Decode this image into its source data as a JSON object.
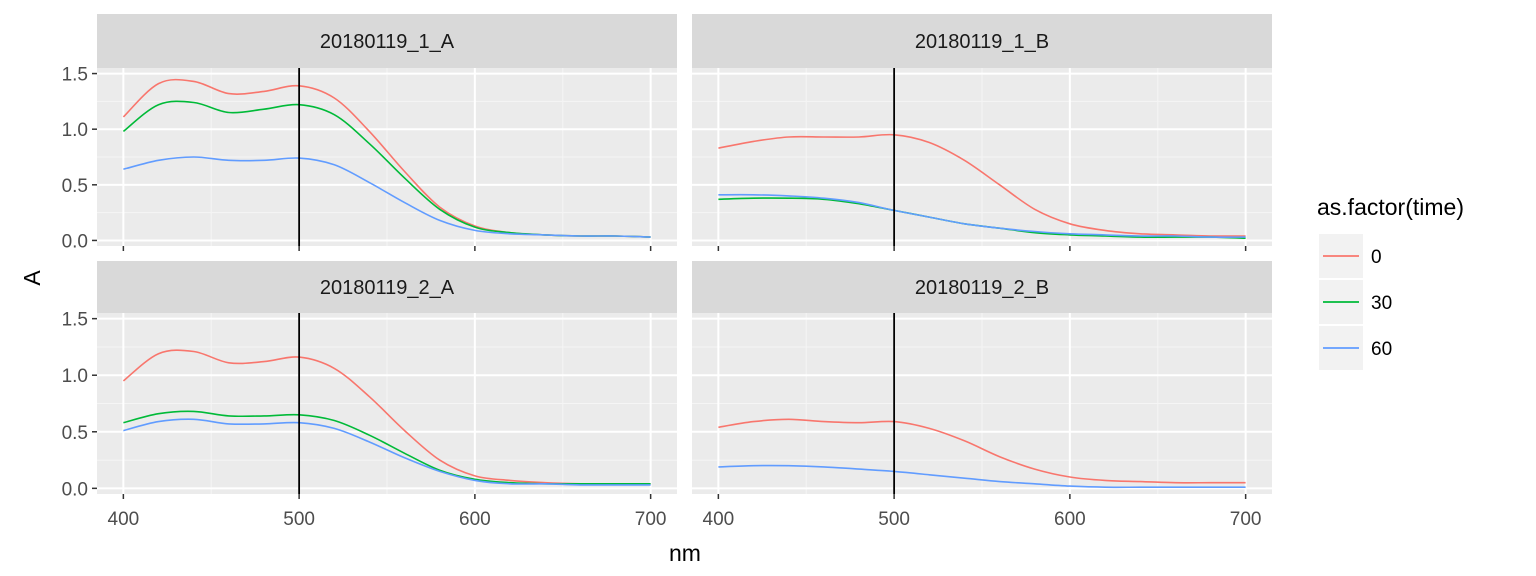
{
  "chart_data": {
    "type": "line",
    "xlabel": "nm",
    "ylabel": "A",
    "xlim": [
      385,
      715
    ],
    "ylim": [
      -0.05,
      1.55
    ],
    "x_ticks": [
      "400",
      "500",
      "600",
      "700"
    ],
    "y_ticks": [
      "0.0",
      "0.5",
      "1.0",
      "1.5"
    ],
    "reference_line_x": 500,
    "grid": true,
    "legend": {
      "title": "as.factor(time)",
      "position": "right",
      "entries": [
        {
          "label": "0",
          "color": "#F8766D"
        },
        {
          "label": "30",
          "color": "#00BA38"
        },
        {
          "label": "60",
          "color": "#619CFF"
        }
      ]
    },
    "x": [
      400,
      420,
      440,
      460,
      480,
      500,
      520,
      540,
      560,
      580,
      600,
      620,
      640,
      660,
      680,
      700
    ],
    "panels": [
      {
        "strip": "20180119_1_A",
        "series": [
          {
            "name": "0",
            "values": [
              1.11,
              1.41,
              1.43,
              1.32,
              1.34,
              1.39,
              1.28,
              0.98,
              0.62,
              0.3,
              0.13,
              0.07,
              0.05,
              0.04,
              0.04,
              0.03
            ]
          },
          {
            "name": "30",
            "values": [
              0.98,
              1.22,
              1.24,
              1.15,
              1.18,
              1.22,
              1.13,
              0.87,
              0.56,
              0.28,
              0.12,
              0.07,
              0.05,
              0.04,
              0.04,
              0.03
            ]
          },
          {
            "name": "60",
            "values": [
              0.64,
              0.72,
              0.75,
              0.72,
              0.72,
              0.74,
              0.68,
              0.52,
              0.34,
              0.18,
              0.09,
              0.06,
              0.05,
              0.04,
              0.04,
              0.03
            ]
          }
        ]
      },
      {
        "strip": "20180119_1_B",
        "series": [
          {
            "name": "0",
            "values": [
              0.83,
              0.89,
              0.93,
              0.93,
              0.93,
              0.95,
              0.88,
              0.72,
              0.5,
              0.28,
              0.15,
              0.09,
              0.06,
              0.05,
              0.04,
              0.04
            ]
          },
          {
            "name": "30",
            "values": [
              0.37,
              0.38,
              0.38,
              0.37,
              0.33,
              0.27,
              0.21,
              0.15,
              0.11,
              0.07,
              0.05,
              0.04,
              0.03,
              0.03,
              0.03,
              0.02
            ]
          },
          {
            "name": "60",
            "values": [
              0.41,
              0.41,
              0.4,
              0.38,
              0.34,
              0.27,
              0.21,
              0.15,
              0.11,
              0.08,
              0.06,
              0.05,
              0.04,
              0.04,
              0.03,
              0.03
            ]
          }
        ]
      },
      {
        "strip": "20180119_2_A",
        "series": [
          {
            "name": "0",
            "values": [
              0.95,
              1.19,
              1.21,
              1.11,
              1.12,
              1.16,
              1.06,
              0.81,
              0.51,
              0.25,
              0.11,
              0.07,
              0.05,
              0.04,
              0.04,
              0.04
            ]
          },
          {
            "name": "30",
            "values": [
              0.58,
              0.66,
              0.68,
              0.64,
              0.64,
              0.65,
              0.6,
              0.47,
              0.31,
              0.16,
              0.08,
              0.05,
              0.04,
              0.04,
              0.04,
              0.04
            ]
          },
          {
            "name": "60",
            "values": [
              0.51,
              0.59,
              0.61,
              0.57,
              0.57,
              0.58,
              0.53,
              0.41,
              0.27,
              0.15,
              0.07,
              0.04,
              0.04,
              0.03,
              0.03,
              0.03
            ]
          }
        ]
      },
      {
        "strip": "20180119_2_B",
        "series": [
          {
            "name": "0",
            "values": [
              0.54,
              0.59,
              0.61,
              0.59,
              0.58,
              0.59,
              0.53,
              0.42,
              0.28,
              0.17,
              0.1,
              0.07,
              0.06,
              0.05,
              0.05,
              0.05
            ]
          },
          {
            "name": "60",
            "values": [
              0.19,
              0.2,
              0.2,
              0.19,
              0.17,
              0.15,
              0.12,
              0.09,
              0.06,
              0.04,
              0.02,
              0.01,
              0.01,
              0.01,
              0.01,
              0.01
            ]
          }
        ]
      }
    ]
  }
}
